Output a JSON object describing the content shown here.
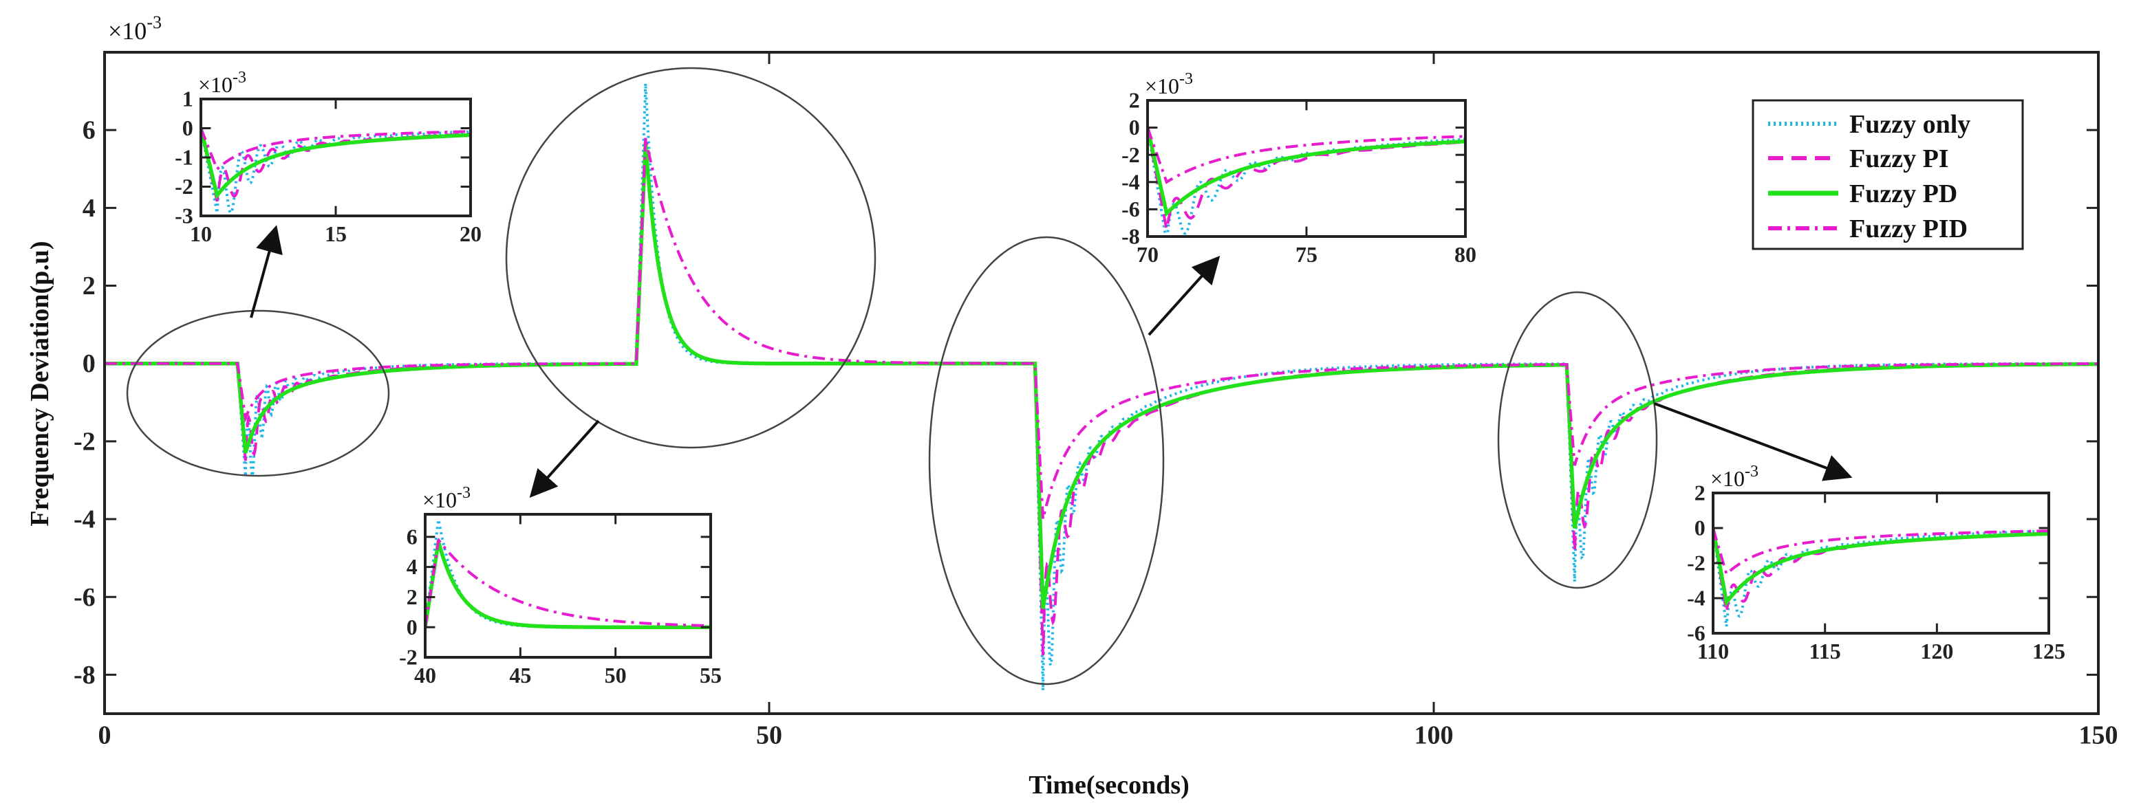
{
  "chart_data": {
    "type": "line",
    "title": "",
    "xlabel": "Time(seconds)",
    "ylabel": "Frequency Deviation(p.u)",
    "exponent_label": "×10",
    "exponent_power": "-3",
    "xlim": [
      0,
      150
    ],
    "ylim": [
      -9,
      8
    ],
    "x_ticks": [
      "0",
      "50",
      "100",
      "150"
    ],
    "y_ticks": [
      "-8",
      "-6",
      "-4",
      "-2",
      "0",
      "2",
      "4",
      "6"
    ],
    "legend_position": "top-right",
    "legend": [
      "Fuzzy only",
      "Fuzzy PI",
      "Fuzzy PD",
      "Fuzzy PID"
    ],
    "series": [
      {
        "name": "Fuzzy only",
        "color": "#1fb6e8",
        "style": "dotted",
        "events": [
          {
            "t": 10,
            "peak": -2.9,
            "overshoot": 0.8,
            "tau": 2.2,
            "osc": 1.3,
            "freq": 1.4
          },
          {
            "t": 40,
            "peak": 7.2,
            "overshoot": 0.0,
            "tau": 1.0,
            "osc": 0.0,
            "freq": 0.0
          },
          {
            "t": 70,
            "peak": -8.4,
            "overshoot": 2.6,
            "tau": 3.5,
            "osc": 2.2,
            "freq": 1.2
          },
          {
            "t": 110,
            "peak": -5.6,
            "overshoot": 1.7,
            "tau": 3.0,
            "osc": 1.5,
            "freq": 1.2
          }
        ]
      },
      {
        "name": "Fuzzy PI",
        "color": "#e81ccf",
        "style": "dashed",
        "events": [
          {
            "t": 10,
            "peak": -2.5,
            "overshoot": 0.5,
            "tau": 3.0,
            "osc": 0.9,
            "freq": 1.1
          },
          {
            "t": 40,
            "peak": 5.8,
            "overshoot": 0.0,
            "tau": 1.2,
            "osc": 0.0,
            "freq": 0.0
          },
          {
            "t": 70,
            "peak": -7.5,
            "overshoot": 2.1,
            "tau": 4.5,
            "osc": 1.8,
            "freq": 0.9
          },
          {
            "t": 110,
            "peak": -4.8,
            "overshoot": 1.4,
            "tau": 4.0,
            "osc": 1.2,
            "freq": 0.9
          }
        ]
      },
      {
        "name": "Fuzzy PD",
        "color": "#22e019",
        "style": "solid",
        "events": [
          {
            "t": 10,
            "peak": -2.3,
            "overshoot": 0.0,
            "tau": 3.5,
            "osc": 0.0,
            "freq": 0.0
          },
          {
            "t": 40,
            "peak": 5.7,
            "overshoot": 0.0,
            "tau": 1.2,
            "osc": 0.0,
            "freq": 0.0
          },
          {
            "t": 70,
            "peak": -6.3,
            "overshoot": 0.0,
            "tau": 5.0,
            "osc": 0.0,
            "freq": 0.0
          },
          {
            "t": 110,
            "peak": -4.2,
            "overshoot": 0.0,
            "tau": 4.5,
            "osc": 0.0,
            "freq": 0.0
          }
        ]
      },
      {
        "name": "Fuzzy PID",
        "color": "#e81ccf",
        "style": "dashdot",
        "events": [
          {
            "t": 10,
            "peak": -1.4,
            "overshoot": 0.0,
            "tau": 3.0,
            "osc": 0.0,
            "freq": 0.0
          },
          {
            "t": 40,
            "peak": 5.8,
            "overshoot": 0.0,
            "tau": 3.5,
            "osc": 0.0,
            "freq": 0.0
          },
          {
            "t": 70,
            "peak": -4.0,
            "overshoot": 0.0,
            "tau": 5.0,
            "osc": 0.0,
            "freq": 0.0
          },
          {
            "t": 110,
            "peak": -2.6,
            "overshoot": 0.0,
            "tau": 4.0,
            "osc": 0.0,
            "freq": 0.0
          }
        ]
      }
    ],
    "insets": [
      {
        "xlim": [
          10,
          20
        ],
        "ylim": [
          -3,
          1
        ],
        "x_ticks": [
          "10",
          "15",
          "20"
        ],
        "y_ticks": [
          "-3",
          "-2",
          "-1",
          "0",
          "1"
        ]
      },
      {
        "xlim": [
          40,
          55
        ],
        "ylim": [
          -2,
          7.5
        ],
        "x_ticks": [
          "40",
          "45",
          "50",
          "55"
        ],
        "y_ticks": [
          "-2",
          "0",
          "2",
          "4",
          "6"
        ]
      },
      {
        "xlim": [
          70,
          80
        ],
        "ylim": [
          -8,
          2
        ],
        "x_ticks": [
          "70",
          "75",
          "80"
        ],
        "y_ticks": [
          "-8",
          "-6",
          "-4",
          "-2",
          "0",
          "2"
        ]
      },
      {
        "xlim": [
          110,
          125
        ],
        "ylim": [
          -6,
          2
        ],
        "x_ticks": [
          "110",
          "115",
          "120",
          "125"
        ],
        "y_ticks": [
          "-6",
          "-4",
          "-2",
          "0",
          "2"
        ]
      }
    ]
  }
}
